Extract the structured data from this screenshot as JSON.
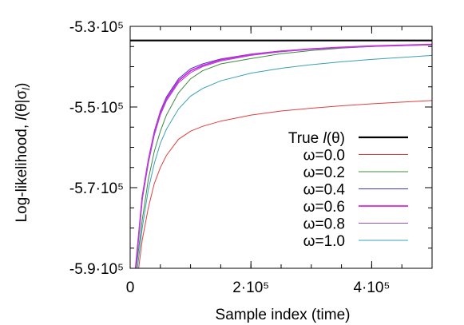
{
  "chart_data": {
    "type": "line",
    "xlabel": "Sample index (time)",
    "ylabel": "Log-likelihood, l(θ|σ_l)",
    "ylabel_parts": {
      "prefix": "Log-likelihood, ",
      "l": "l",
      "open": "(θ|σ",
      "sub": "l",
      "close": ")"
    },
    "xlim": [
      0,
      500000
    ],
    "ylim": [
      -590000,
      -530000
    ],
    "xticks": [
      {
        "value": 0,
        "label": "0"
      },
      {
        "value": 200000,
        "label": "2·10⁵"
      },
      {
        "value": 400000,
        "label": "4·10⁵"
      }
    ],
    "yticks": [
      {
        "value": -530000,
        "label": "-5.3·10⁵"
      },
      {
        "value": -550000,
        "label": "-5.5·10⁵"
      },
      {
        "value": -570000,
        "label": "-5.7·10⁵"
      },
      {
        "value": -590000,
        "label": "-5.9·10⁵"
      }
    ],
    "legend_position": "bottom-right",
    "true_line": {
      "name": "True l(θ)",
      "value": -533500,
      "color": "#000000"
    },
    "series": [
      {
        "name": "ω=0.0",
        "color": "#e04040",
        "x": [
          14000,
          20000,
          30000,
          40000,
          50000,
          60000,
          80000,
          100000,
          120000,
          150000,
          200000,
          250000,
          300000,
          350000,
          400000,
          450000,
          500000
        ],
        "y": [
          -590000,
          -583000,
          -575000,
          -569000,
          -565000,
          -562000,
          -558000,
          -556000,
          -554800,
          -553500,
          -552000,
          -551000,
          -550300,
          -549700,
          -549200,
          -548800,
          -548400
        ]
      },
      {
        "name": "ω=0.2",
        "color": "#3f8a3f",
        "x": [
          10000,
          20000,
          30000,
          40000,
          50000,
          60000,
          80000,
          100000,
          120000,
          150000,
          200000,
          250000,
          300000,
          350000,
          400000,
          450000,
          500000
        ],
        "y": [
          -590000,
          -578000,
          -568000,
          -561000,
          -556000,
          -552000,
          -546500,
          -543000,
          -541000,
          -539300,
          -538000,
          -536800,
          -536000,
          -535400,
          -535000,
          -534700,
          -534500
        ]
      },
      {
        "name": "ω=0.4",
        "color": "#3a3ad0",
        "x": [
          9000,
          20000,
          30000,
          40000,
          50000,
          60000,
          80000,
          100000,
          120000,
          150000,
          200000,
          250000,
          300000,
          350000,
          400000,
          450000,
          500000
        ],
        "y": [
          -590000,
          -572000,
          -563000,
          -556000,
          -551000,
          -547500,
          -543000,
          -540500,
          -539300,
          -538100,
          -536900,
          -536100,
          -535600,
          -535200,
          -534900,
          -534700,
          -534500
        ]
      },
      {
        "name": "ω=0.6",
        "color": "#dd22dd",
        "x": [
          9000,
          20000,
          30000,
          40000,
          50000,
          60000,
          80000,
          100000,
          120000,
          150000,
          200000,
          250000,
          300000,
          350000,
          400000,
          450000,
          500000
        ],
        "y": [
          -590000,
          -572500,
          -563500,
          -556500,
          -551500,
          -548000,
          -543500,
          -541000,
          -539700,
          -538300,
          -537000,
          -536200,
          -535600,
          -535200,
          -534900,
          -534700,
          -534500
        ]
      },
      {
        "name": "ω=0.8",
        "color": "#9a4fcf",
        "x": [
          9000,
          20000,
          30000,
          40000,
          50000,
          60000,
          80000,
          100000,
          120000,
          150000,
          200000,
          250000,
          300000,
          350000,
          400000,
          450000,
          500000
        ],
        "y": [
          -590000,
          -573000,
          -564000,
          -557000,
          -552000,
          -548500,
          -544000,
          -541500,
          -540000,
          -538600,
          -537200,
          -536300,
          -535700,
          -535300,
          -535000,
          -534800,
          -534600
        ]
      },
      {
        "name": "ω=1.0",
        "color": "#3aa0b8",
        "x": [
          12000,
          20000,
          30000,
          40000,
          50000,
          60000,
          80000,
          100000,
          120000,
          150000,
          200000,
          250000,
          300000,
          350000,
          400000,
          450000,
          500000
        ],
        "y": [
          -590000,
          -580000,
          -570500,
          -564000,
          -559000,
          -555500,
          -550500,
          -547300,
          -545400,
          -543500,
          -541600,
          -540400,
          -539500,
          -538800,
          -538200,
          -537700,
          -537200
        ]
      }
    ]
  }
}
